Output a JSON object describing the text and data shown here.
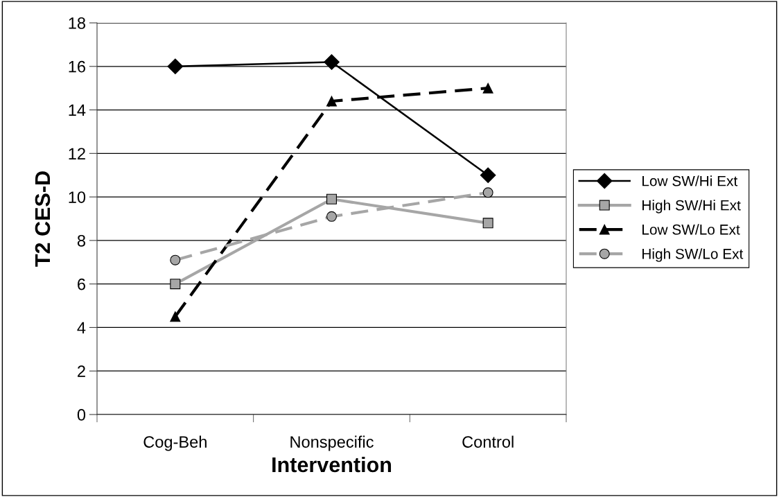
{
  "chart_data": {
    "type": "line",
    "xlabel": "Intervention",
    "ylabel": "T2 CES-D",
    "categories": [
      "Cog-Beh",
      "Nonspecific",
      "Control"
    ],
    "series": [
      {
        "name": "Low SW/Hi Ext",
        "color": "#000000",
        "values": [
          16.0,
          16.2,
          11.0
        ],
        "marker": "diamond",
        "line_style": "solid"
      },
      {
        "name": "High SW/Hi Ext",
        "color": "#a6a6a6",
        "values": [
          6.0,
          9.9,
          8.8
        ],
        "marker": "square",
        "line_style": "solid"
      },
      {
        "name": "Low SW/Lo Ext",
        "color": "#000000",
        "values": [
          4.5,
          14.4,
          15.0
        ],
        "marker": "triangle",
        "line_style": "dashed"
      },
      {
        "name": "High SW/Lo Ext",
        "color": "#a6a6a6",
        "values": [
          7.1,
          9.1,
          10.2
        ],
        "marker": "circle",
        "line_style": "dashed"
      }
    ],
    "ylim": [
      0,
      18
    ],
    "yticks": [
      0,
      2,
      4,
      6,
      8,
      10,
      12,
      14,
      16,
      18
    ],
    "grid": "y",
    "legend": "right"
  }
}
